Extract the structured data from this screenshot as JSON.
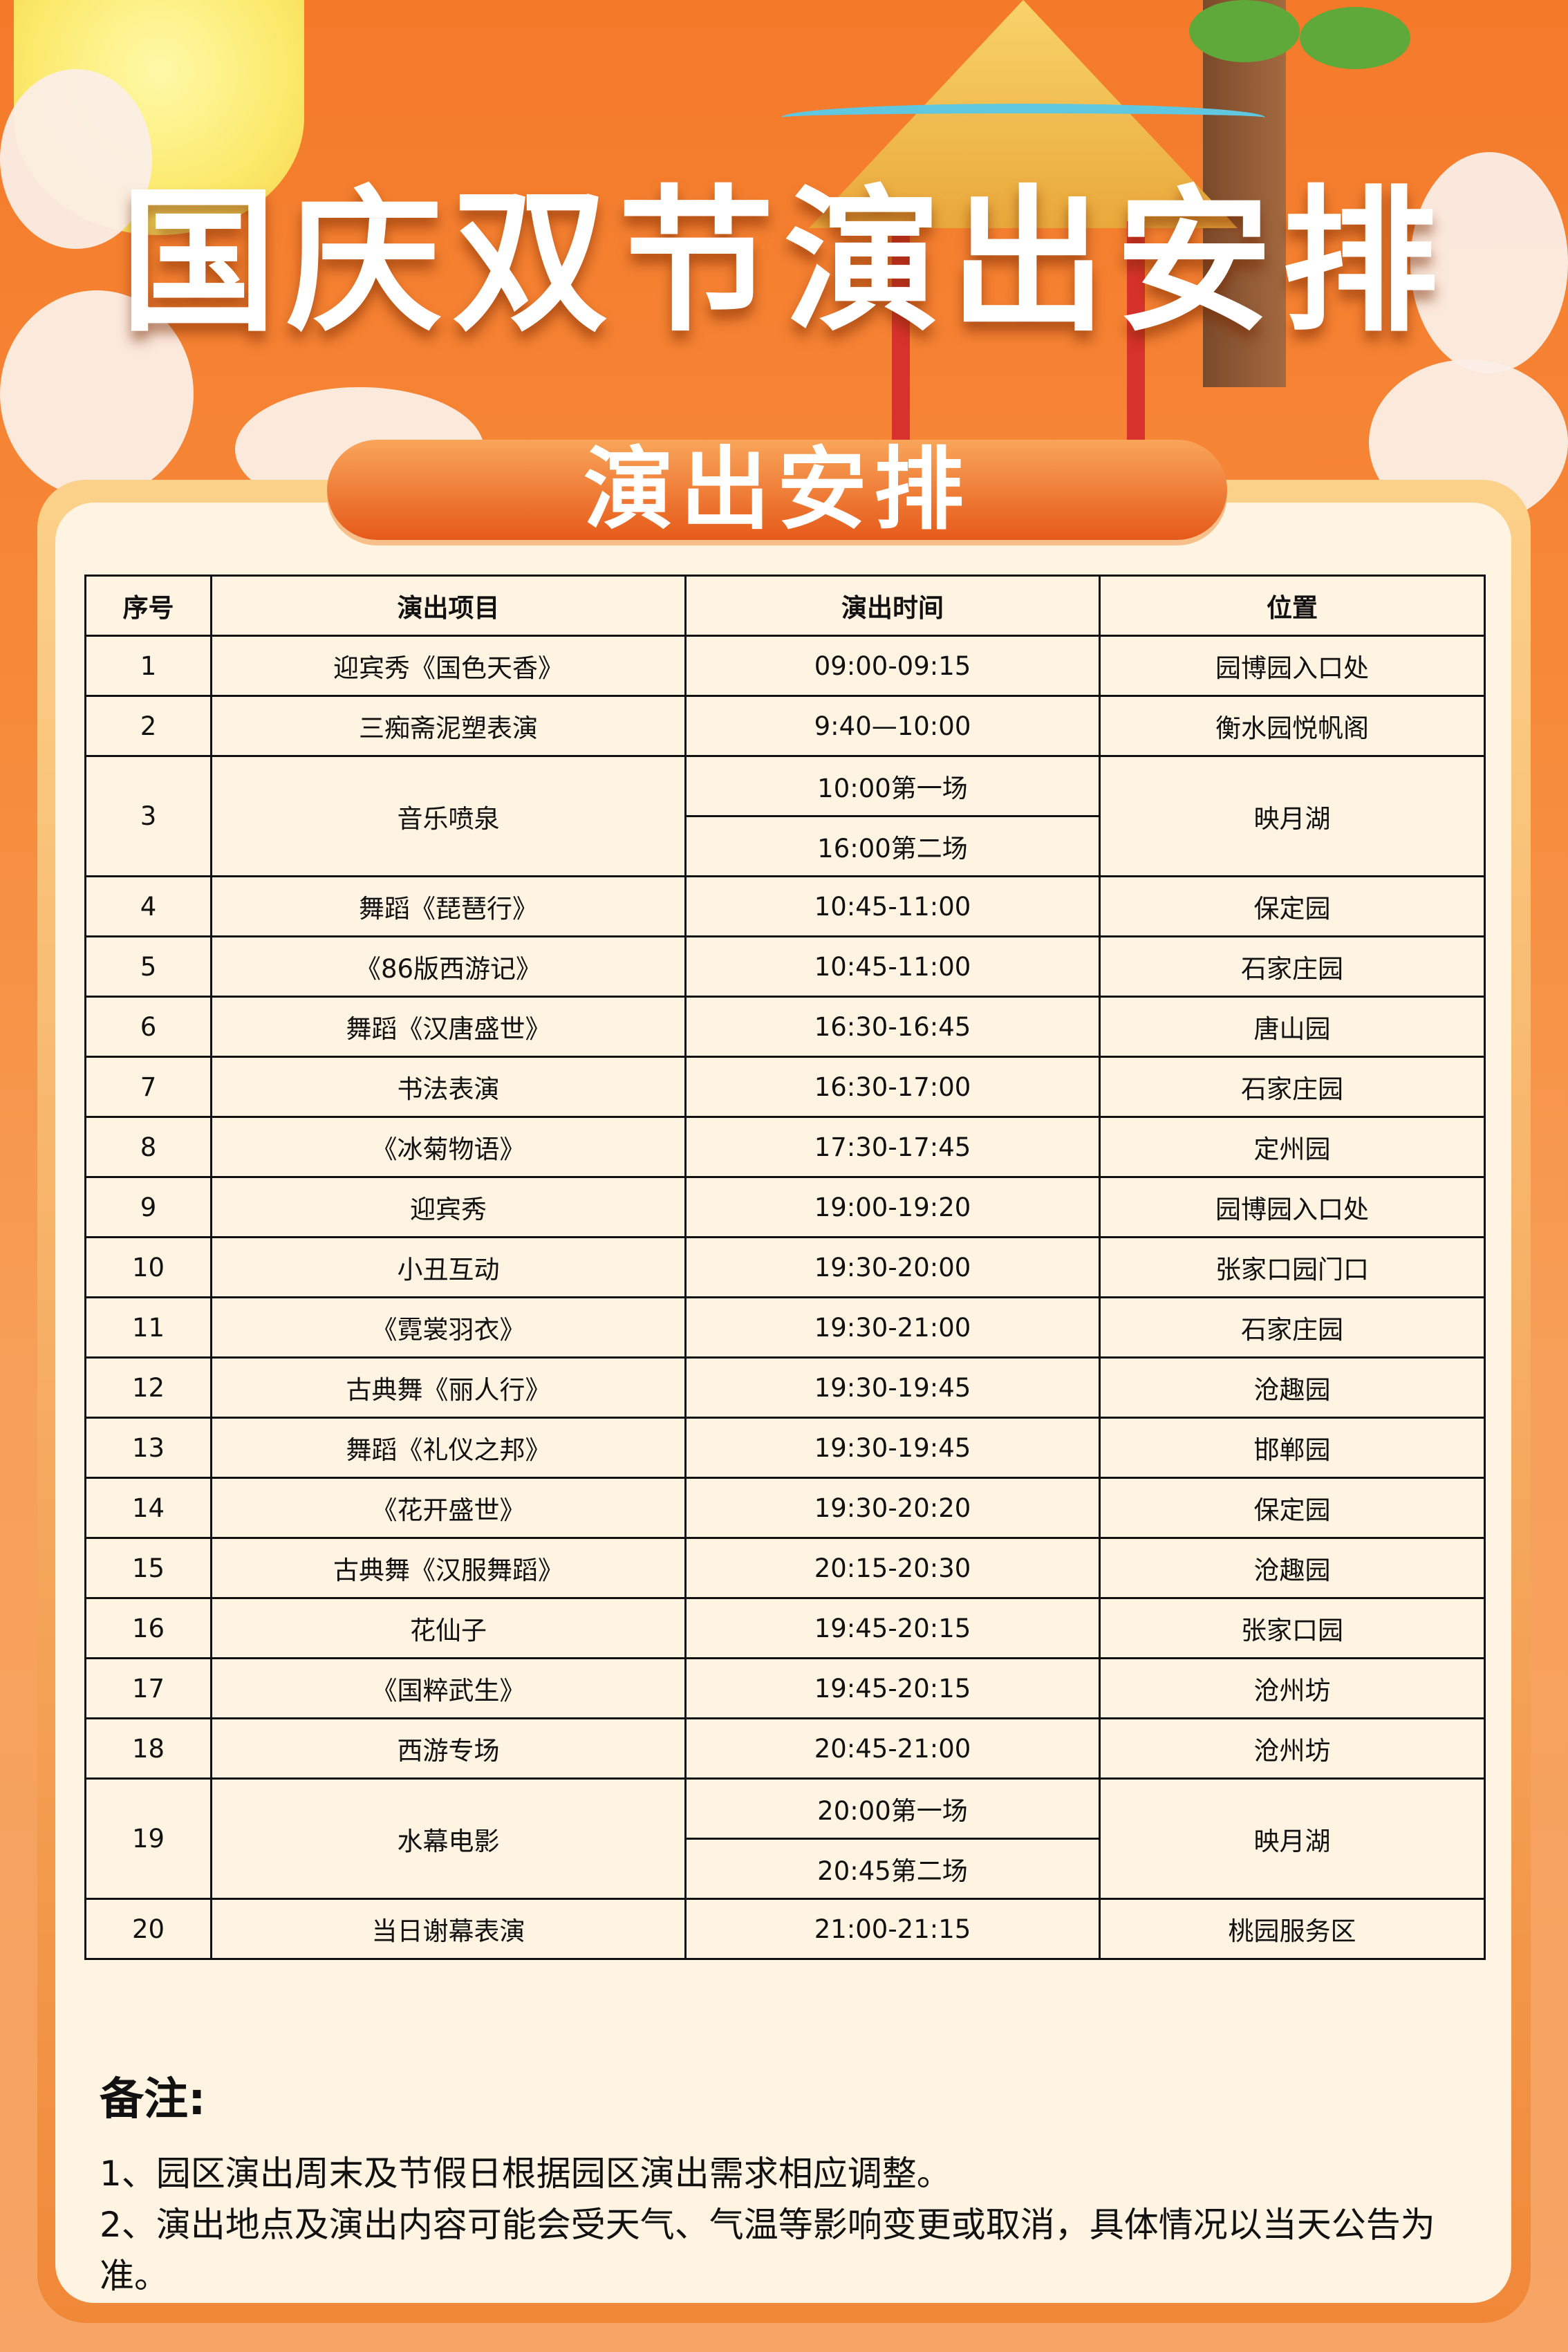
{
  "header": {
    "title": "国庆双节演出安排"
  },
  "section": {
    "title": "演出安排"
  },
  "table": {
    "columns": [
      "序号",
      "演出项目",
      "演出时间",
      "位置"
    ],
    "rows": [
      {
        "no": "1",
        "item": "迎宾秀《国色天香》",
        "times": [
          "09:00-09:15"
        ],
        "location": "园博园入口处"
      },
      {
        "no": "2",
        "item": "三痴斋泥塑表演",
        "times": [
          "9:40—10:00"
        ],
        "location": "衡水园悦帆阁"
      },
      {
        "no": "3",
        "item": "音乐喷泉",
        "times": [
          "10:00第一场",
          "16:00第二场"
        ],
        "location": "映月湖"
      },
      {
        "no": "4",
        "item": "舞蹈《琵琶行》",
        "times": [
          "10:45-11:00"
        ],
        "location": "保定园"
      },
      {
        "no": "5",
        "item": "《86版西游记》",
        "times": [
          "10:45-11:00"
        ],
        "location": "石家庄园"
      },
      {
        "no": "6",
        "item": "舞蹈《汉唐盛世》",
        "times": [
          "16:30-16:45"
        ],
        "location": "唐山园"
      },
      {
        "no": "7",
        "item": "书法表演",
        "times": [
          "16:30-17:00"
        ],
        "location": "石家庄园"
      },
      {
        "no": "8",
        "item": "《冰菊物语》",
        "times": [
          "17:30-17:45"
        ],
        "location": "定州园"
      },
      {
        "no": "9",
        "item": "迎宾秀",
        "times": [
          "19:00-19:20"
        ],
        "location": "园博园入口处"
      },
      {
        "no": "10",
        "item": "小丑互动",
        "times": [
          "19:30-20:00"
        ],
        "location": "张家口园门口"
      },
      {
        "no": "11",
        "item": "《霓裳羽衣》",
        "times": [
          "19:30-21:00"
        ],
        "location": "石家庄园"
      },
      {
        "no": "12",
        "item": "古典舞《丽人行》",
        "times": [
          "19:30-19:45"
        ],
        "location": "沧趣园"
      },
      {
        "no": "13",
        "item": "舞蹈《礼仪之邦》",
        "times": [
          "19:30-19:45"
        ],
        "location": "邯郸园"
      },
      {
        "no": "14",
        "item": "《花开盛世》",
        "times": [
          "19:30-20:20"
        ],
        "location": "保定园"
      },
      {
        "no": "15",
        "item": "古典舞《汉服舞蹈》",
        "times": [
          "20:15-20:30"
        ],
        "location": "沧趣园"
      },
      {
        "no": "16",
        "item": "花仙子",
        "times": [
          "19:45-20:15"
        ],
        "location": "张家口园"
      },
      {
        "no": "17",
        "item": "《国粹武生》",
        "times": [
          "19:45-20:15"
        ],
        "location": "沧州坊"
      },
      {
        "no": "18",
        "item": "西游专场",
        "times": [
          "20:45-21:00"
        ],
        "location": "沧州坊"
      },
      {
        "no": "19",
        "item": "水幕电影",
        "times": [
          "20:00第一场",
          "20:45第二场"
        ],
        "location": "映月湖"
      },
      {
        "no": "20",
        "item": "当日谢幕表演",
        "times": [
          "21:00-21:15"
        ],
        "location": "桃园服务区"
      }
    ]
  },
  "notes": {
    "title": "备注:",
    "lines": [
      "1、园区演出周末及节假日根据园区演出需求相应调整。",
      "2、演出地点及演出内容可能会受天气、气温等影响变更或取消，具体情况以当天公告为准。"
    ]
  },
  "colors": {
    "background": "#f47a2a",
    "card": "#fff4e2",
    "pill": "#e65a1a"
  }
}
